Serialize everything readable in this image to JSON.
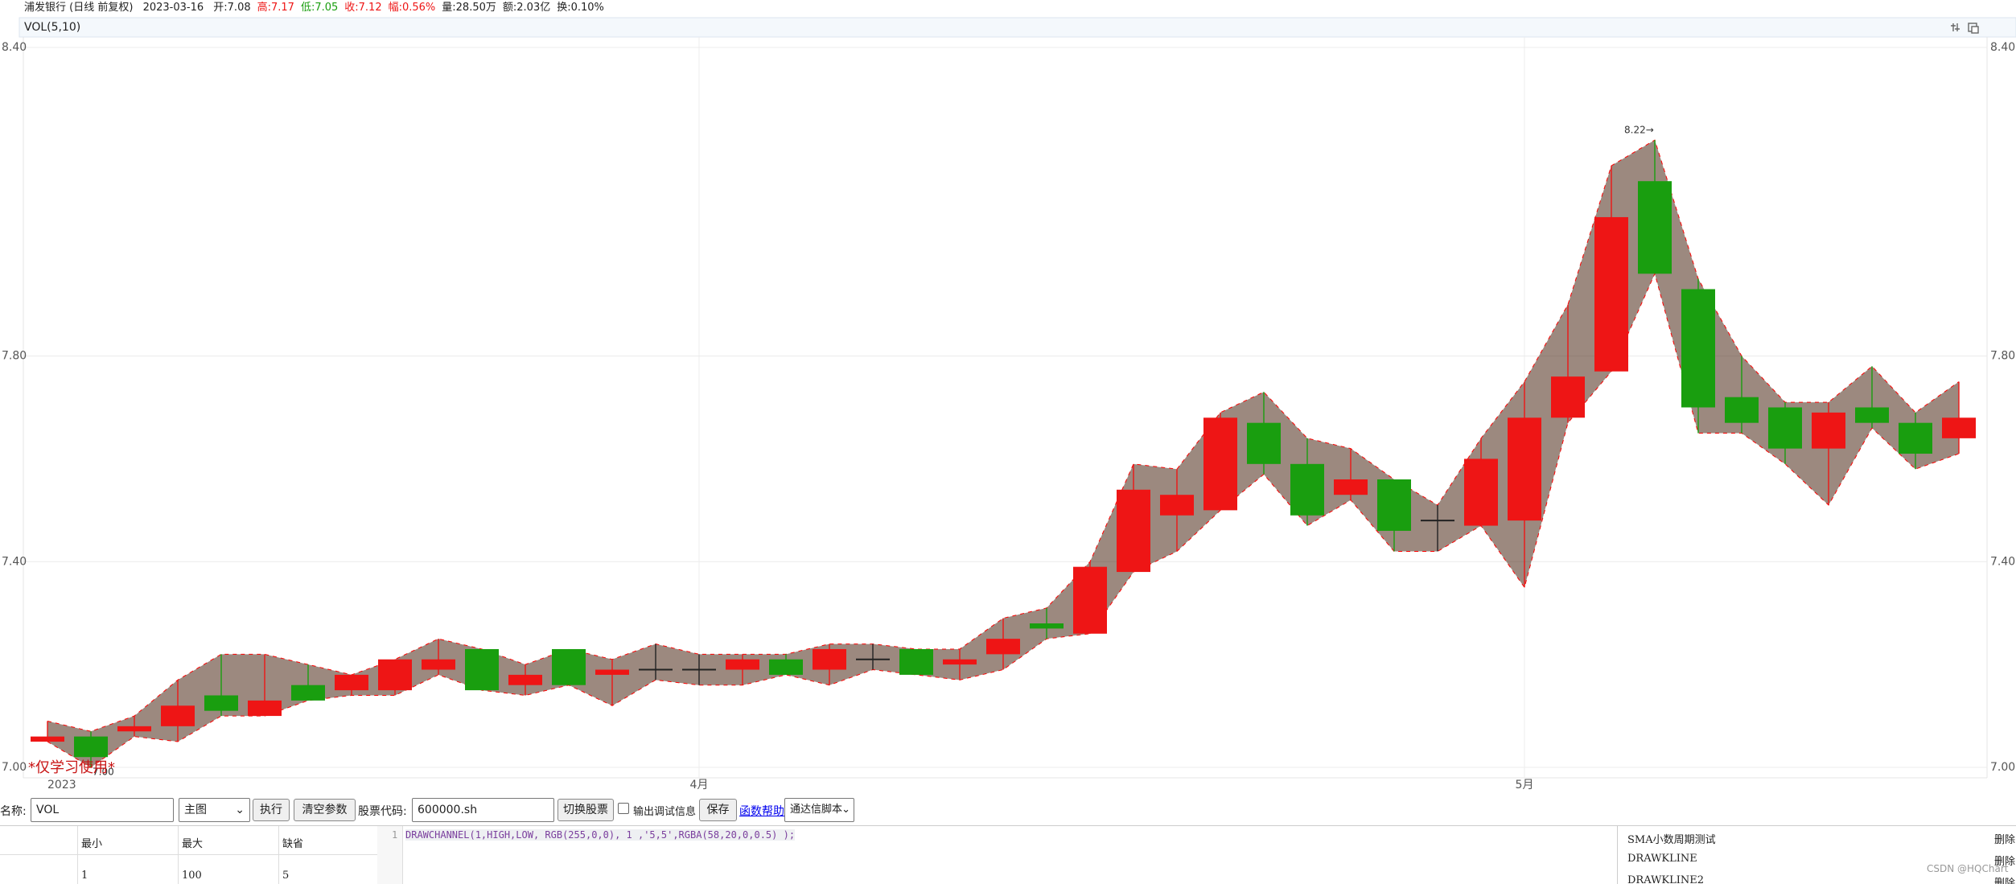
{
  "header": {
    "name": "浦发银行",
    "period": "(日线 前复权)",
    "date": "2023-03-16",
    "fields": [
      {
        "text": "开:7.08",
        "color": "#222222"
      },
      {
        "text": "高:7.17",
        "color": "#ee1515"
      },
      {
        "text": "低:7.05",
        "color": "#199e0f"
      },
      {
        "text": "收:7.12",
        "color": "#ee1515"
      },
      {
        "text": "幅:0.56%",
        "color": "#ee1515"
      },
      {
        "text": "量:28.50万",
        "color": "#222222"
      },
      {
        "text": "额:2.03亿",
        "color": "#222222"
      },
      {
        "text": "换:0.10%",
        "color": "#222222"
      }
    ],
    "indicator": "VOL(5,10)"
  },
  "chart_data": {
    "type": "candlestick",
    "categories": [
      "2023",
      null,
      null,
      null,
      null,
      null,
      null,
      null,
      null,
      null,
      null,
      null,
      null,
      null,
      null,
      "4月",
      null,
      null,
      null,
      null,
      null,
      null,
      null,
      null,
      null,
      null,
      null,
      null,
      null,
      null,
      null,
      null,
      null,
      null,
      "5月",
      null,
      null,
      null,
      null,
      null,
      null,
      null,
      null,
      null,
      null
    ],
    "open": [
      7.05,
      7.06,
      7.07,
      7.08,
      7.14,
      7.1,
      7.16,
      7.15,
      7.15,
      7.19,
      7.23,
      7.16,
      7.23,
      7.18,
      7.19,
      7.19,
      7.19,
      7.21,
      7.19,
      7.21,
      7.23,
      7.2,
      7.22,
      7.28,
      7.26,
      7.38,
      7.49,
      7.5,
      7.67,
      7.59,
      7.53,
      7.56,
      7.48,
      7.47,
      7.48,
      7.68,
      7.77,
      8.14,
      7.93,
      7.72,
      7.7,
      7.62,
      7.7,
      7.67,
      7.64
    ],
    "high": [
      7.09,
      7.07,
      7.1,
      7.17,
      7.22,
      7.22,
      7.2,
      7.18,
      7.21,
      7.25,
      7.23,
      7.2,
      7.23,
      7.21,
      7.24,
      7.22,
      7.22,
      7.22,
      7.24,
      7.24,
      7.23,
      7.23,
      7.29,
      7.31,
      7.4,
      7.59,
      7.58,
      7.69,
      7.73,
      7.64,
      7.62,
      7.56,
      7.51,
      7.64,
      7.75,
      7.9,
      8.17,
      8.22,
      7.95,
      7.8,
      7.71,
      7.71,
      7.78,
      7.69,
      7.75
    ],
    "low": [
      7.05,
      7.0,
      7.06,
      7.05,
      7.1,
      7.1,
      7.13,
      7.14,
      7.14,
      7.18,
      7.15,
      7.14,
      7.16,
      7.12,
      7.17,
      7.16,
      7.16,
      7.18,
      7.16,
      7.19,
      7.18,
      7.17,
      7.19,
      7.25,
      7.26,
      7.38,
      7.42,
      7.5,
      7.57,
      7.47,
      7.52,
      7.42,
      7.42,
      7.47,
      7.35,
      7.67,
      7.77,
      7.96,
      7.65,
      7.65,
      7.59,
      7.51,
      7.66,
      7.58,
      7.61
    ],
    "close": [
      7.06,
      7.02,
      7.08,
      7.12,
      7.11,
      7.13,
      7.13,
      7.18,
      7.21,
      7.21,
      7.15,
      7.18,
      7.16,
      7.19,
      7.19,
      7.19,
      7.21,
      7.18,
      7.23,
      7.21,
      7.18,
      7.21,
      7.25,
      7.27,
      7.39,
      7.54,
      7.53,
      7.68,
      7.59,
      7.49,
      7.56,
      7.46,
      7.48,
      7.6,
      7.68,
      7.76,
      8.07,
      7.96,
      7.7,
      7.67,
      7.62,
      7.69,
      7.67,
      7.61,
      7.68
    ],
    "up_color": "#ee1515",
    "down_color": "#199e0f",
    "flat_color": "#222222",
    "channel_line_color": "#ff0000",
    "channel_fill": "rgba(58,20,0,0.5)",
    "ylim": [
      7.0,
      8.4
    ],
    "yticks": [
      {
        "value": 8.4,
        "label": "8.40"
      },
      {
        "value": 7.8,
        "label": "7.80"
      },
      {
        "value": 7.4,
        "label": "7.40"
      },
      {
        "value": 7.0,
        "label": "7.00"
      }
    ],
    "grid": true,
    "max_label": "8.22→",
    "min_label": "7.00",
    "watermark": "*仅学习使用*"
  },
  "form": {
    "name_label": "名称:",
    "name_value": "VOL",
    "position": "主图",
    "run": "执行",
    "clear": "清空参数",
    "code_label": "股票代码:",
    "code_value": "600000.sh",
    "switch": "切换股票",
    "debug": "输出调试信息",
    "save": "保存",
    "help": "函数帮助",
    "script_type": "通达信脚本"
  },
  "table": {
    "header": [
      "最小",
      "最大",
      "缺省"
    ],
    "rows": [
      [
        "1",
        "100",
        "5"
      ]
    ]
  },
  "editor": {
    "line": "1",
    "code": "DRAWCHANNEL(1,HIGH,LOW, RGB(255,0,0), 1 ,'5,5',RGBA(58,20,0,0.5) );"
  },
  "scripts": [
    {
      "name": "SMA小数周期测试",
      "action": "删除"
    },
    {
      "name": "DRAWKLINE",
      "action": "删除"
    },
    {
      "name": "DRAWKLINE2",
      "action": "删除"
    }
  ],
  "footer": "CSDN @HQChart"
}
